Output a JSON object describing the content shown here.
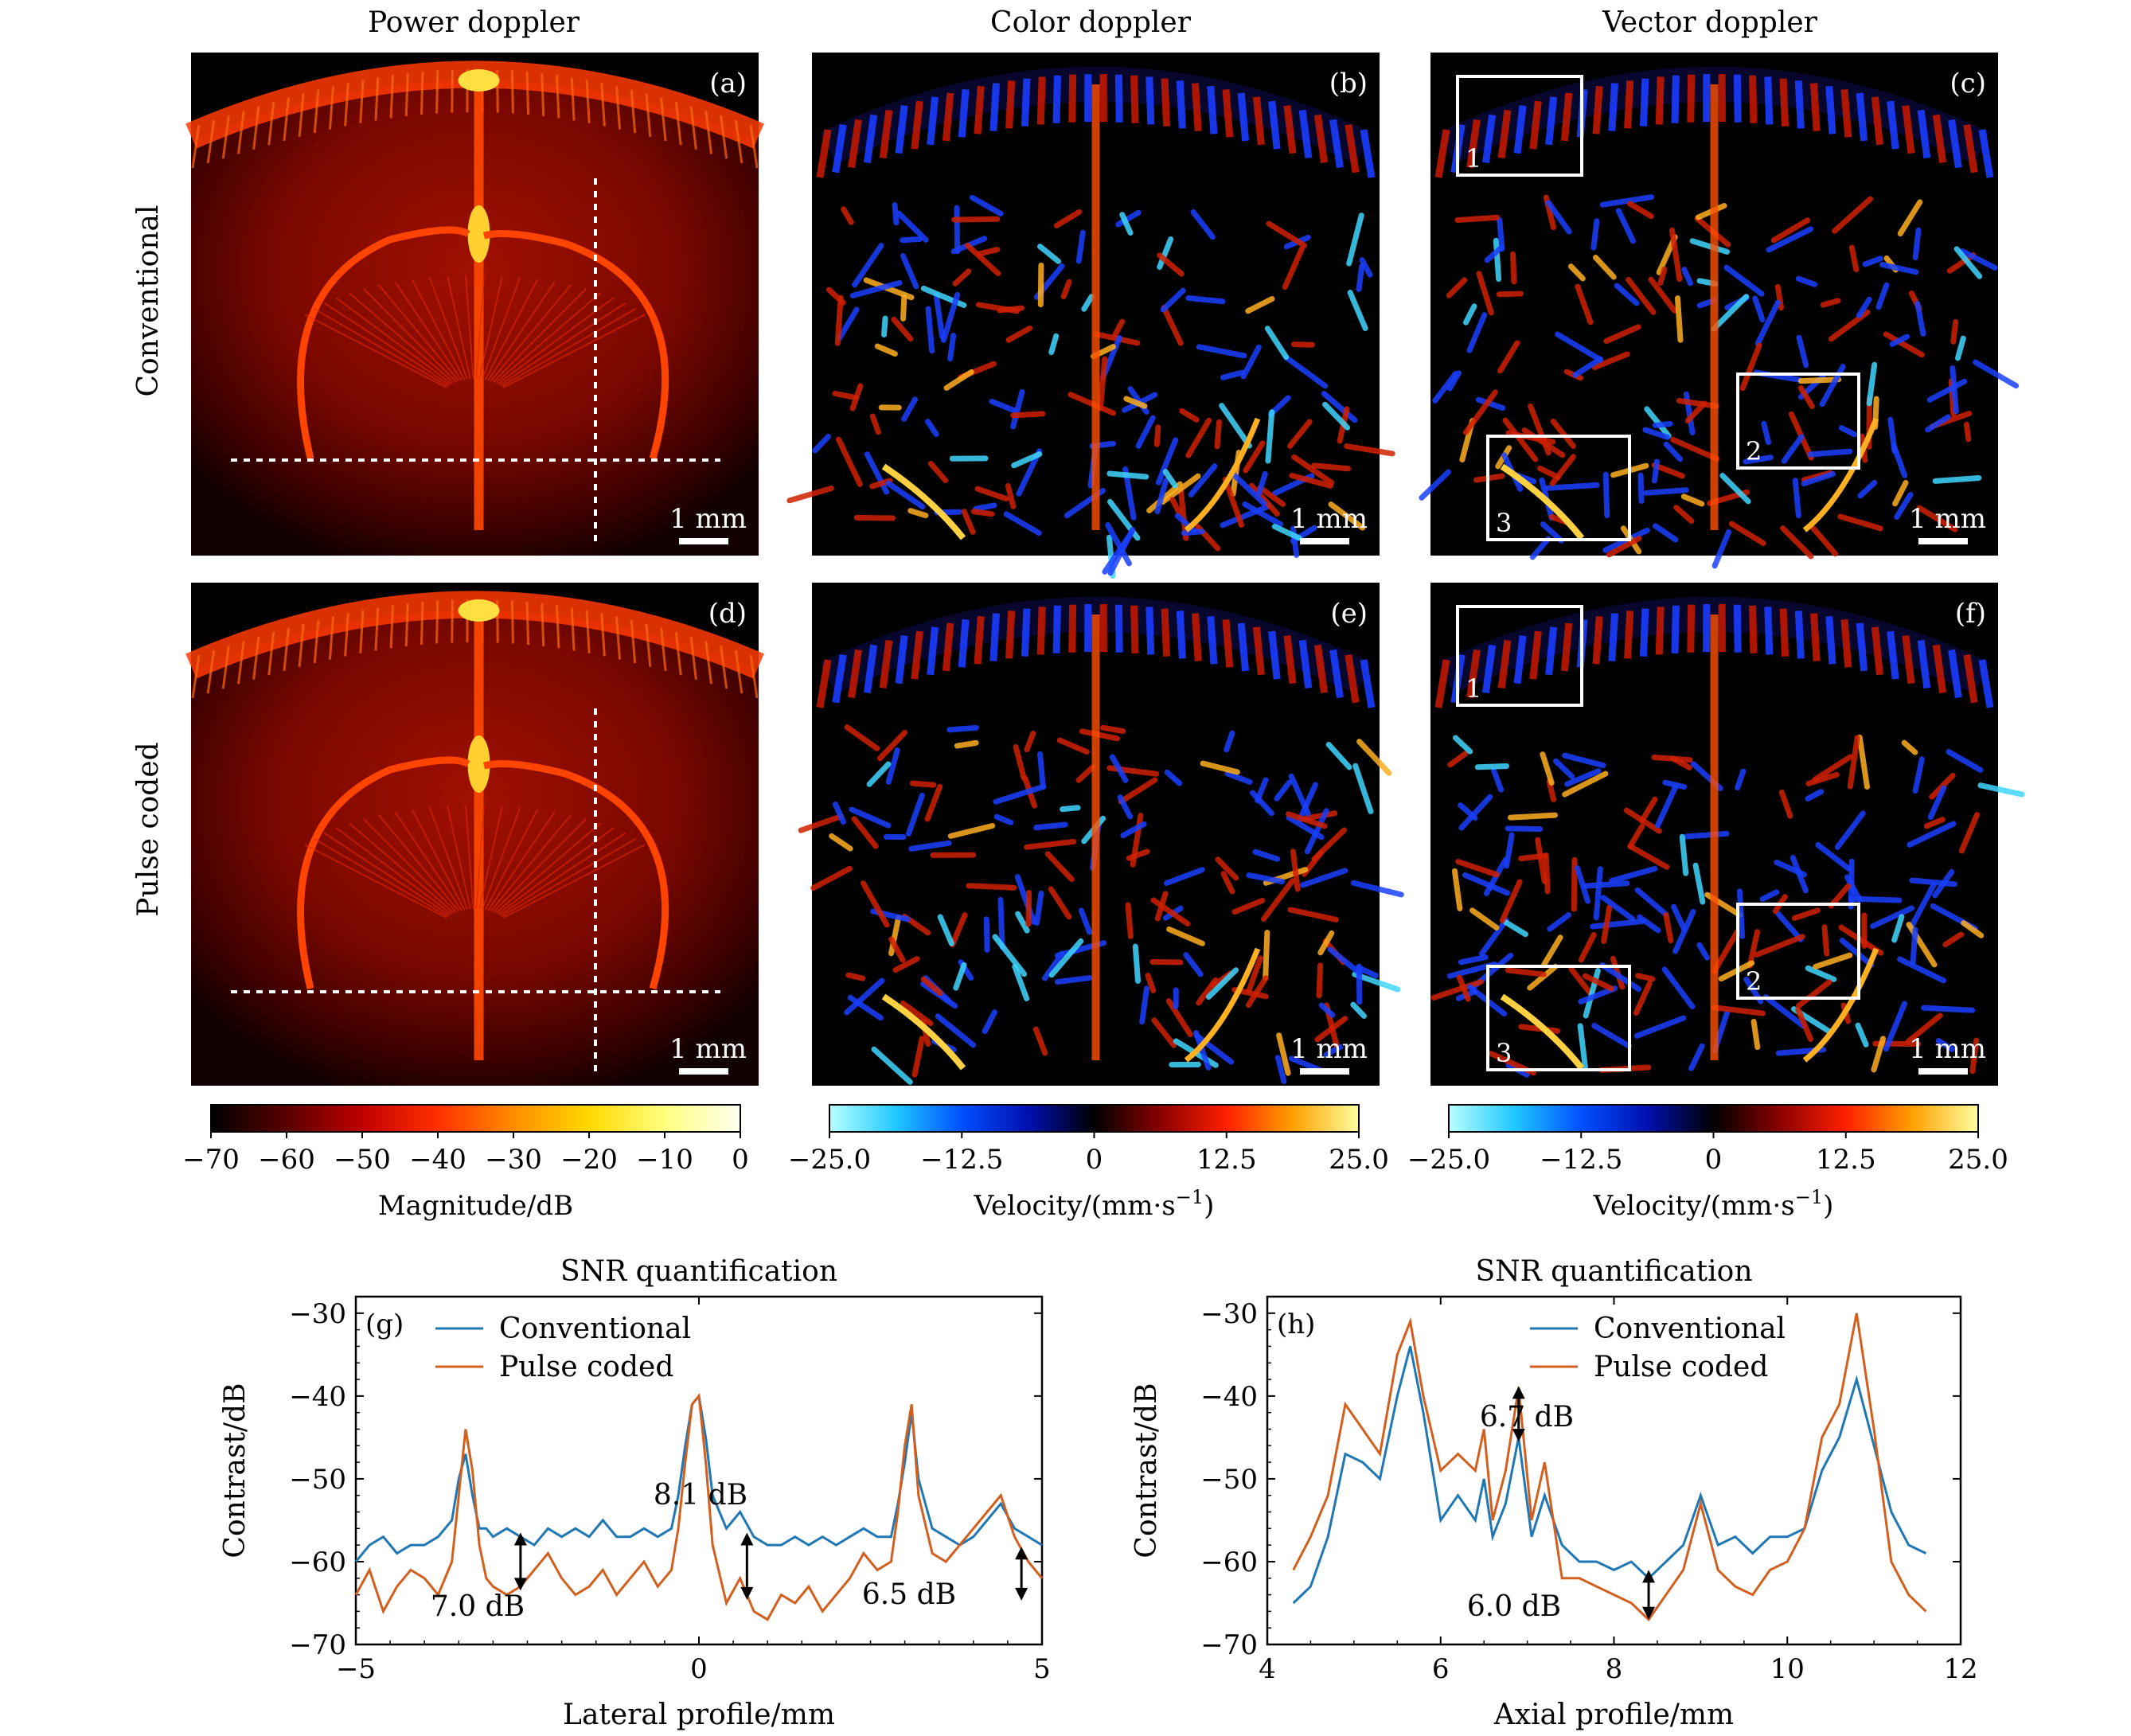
{
  "figure": {
    "column_titles": [
      "Power doppler",
      "Color doppler",
      "Vector doppler"
    ],
    "row_labels": [
      "Conventional",
      "Pulse coded"
    ],
    "panels": [
      {
        "tag": "(a)",
        "scale": "1 mm",
        "kind": "power"
      },
      {
        "tag": "(b)",
        "scale": "1 mm",
        "kind": "color"
      },
      {
        "tag": "(c)",
        "scale": "1 mm",
        "kind": "vector",
        "boxes": [
          "1",
          "2",
          "3"
        ]
      },
      {
        "tag": "(d)",
        "scale": "1 mm",
        "kind": "power"
      },
      {
        "tag": "(e)",
        "scale": "1 mm",
        "kind": "color"
      },
      {
        "tag": "(f)",
        "scale": "1 mm",
        "kind": "vector",
        "boxes": [
          "1",
          "2",
          "3"
        ]
      }
    ],
    "colorbars": [
      {
        "ticks": [
          "−70",
          "−60",
          "−50",
          "−40",
          "−30",
          "−20",
          "−10",
          "0"
        ],
        "label": "Magnitude/dB",
        "colormap": [
          "#000000",
          "#5a0000",
          "#c00000",
          "#ff3000",
          "#ff8c00",
          "#ffd800",
          "#ffff80",
          "#fffff0"
        ]
      },
      {
        "ticks": [
          "−25.0",
          "−12.5",
          "0",
          "12.5",
          "25.0"
        ],
        "label": "Velocity/(mm·s",
        "label_sup": "−1",
        "label_end": ")",
        "colormap": [
          "#b8ffff",
          "#20c8ff",
          "#0050ff",
          "#0010b0",
          "#000000",
          "#8a0000",
          "#ff2000",
          "#ffa000",
          "#ffffa0"
        ]
      },
      {
        "ticks": [
          "−25.0",
          "−12.5",
          "0",
          "12.5",
          "25.0"
        ],
        "label": "Velocity/(mm·s",
        "label_sup": "−1",
        "label_end": ")",
        "colormap": [
          "#b8ffff",
          "#20c8ff",
          "#0050ff",
          "#0010b0",
          "#000000",
          "#8a0000",
          "#ff2000",
          "#ffa000",
          "#ffffa0"
        ]
      }
    ]
  },
  "chart_data": [
    {
      "type": "line",
      "panel": "(g)",
      "title": "SNR quantification",
      "xlabel": "Lateral profile/mm",
      "ylabel": "Contrast/dB",
      "xlim": [
        -5,
        5
      ],
      "ylim": [
        -70,
        -28
      ],
      "xticks": [
        "−5",
        "0",
        "5"
      ],
      "yticks": [
        "−70",
        "−60",
        "−50",
        "−40",
        "−30"
      ],
      "legend": [
        "Conventional",
        "Pulse coded"
      ],
      "colors": {
        "Conventional": "#1f77b4",
        "Pulse coded": "#d35f1f"
      },
      "series": [
        {
          "name": "Conventional",
          "x": [
            -5,
            -4.8,
            -4.6,
            -4.4,
            -4.2,
            -4.0,
            -3.8,
            -3.6,
            -3.5,
            -3.4,
            -3.3,
            -3.2,
            -3.1,
            -3.0,
            -2.8,
            -2.6,
            -2.4,
            -2.2,
            -2.0,
            -1.8,
            -1.6,
            -1.4,
            -1.2,
            -1.0,
            -0.8,
            -0.6,
            -0.4,
            -0.3,
            -0.2,
            -0.1,
            0.0,
            0.1,
            0.2,
            0.4,
            0.6,
            0.8,
            1.0,
            1.2,
            1.4,
            1.6,
            1.8,
            2.0,
            2.2,
            2.4,
            2.6,
            2.8,
            2.9,
            3.0,
            3.1,
            3.2,
            3.4,
            3.6,
            3.8,
            4.0,
            4.2,
            4.4,
            4.6,
            4.8,
            5.0
          ],
          "y": [
            -60,
            -58,
            -57,
            -59,
            -58,
            -58,
            -57,
            -55,
            -50,
            -47,
            -52,
            -56,
            -56,
            -57,
            -56,
            -57,
            -58,
            -56,
            -57,
            -56,
            -57,
            -55,
            -57,
            -57,
            -56,
            -57,
            -56,
            -52,
            -46,
            -41,
            -40,
            -45,
            -52,
            -56,
            -54,
            -57,
            -58,
            -58,
            -57,
            -58,
            -57,
            -58,
            -57,
            -56,
            -57,
            -57,
            -53,
            -48,
            -42,
            -50,
            -56,
            -57,
            -58,
            -57,
            -55,
            -53,
            -56,
            -57,
            -58
          ]
        },
        {
          "name": "Pulse coded",
          "x": [
            -5,
            -4.8,
            -4.6,
            -4.4,
            -4.2,
            -4.0,
            -3.8,
            -3.6,
            -3.5,
            -3.4,
            -3.3,
            -3.2,
            -3.1,
            -3.0,
            -2.8,
            -2.6,
            -2.4,
            -2.2,
            -2.0,
            -1.8,
            -1.6,
            -1.4,
            -1.2,
            -1.0,
            -0.8,
            -0.6,
            -0.4,
            -0.3,
            -0.2,
            -0.1,
            0.0,
            0.1,
            0.2,
            0.4,
            0.6,
            0.8,
            1.0,
            1.2,
            1.4,
            1.6,
            1.8,
            2.0,
            2.2,
            2.4,
            2.6,
            2.8,
            2.9,
            3.0,
            3.1,
            3.2,
            3.4,
            3.6,
            3.8,
            4.0,
            4.2,
            4.4,
            4.6,
            4.8,
            5.0
          ],
          "y": [
            -64,
            -61,
            -66,
            -63,
            -61,
            -62,
            -64,
            -60,
            -52,
            -44,
            -49,
            -58,
            -62,
            -63,
            -64,
            -63,
            -61,
            -59,
            -62,
            -64,
            -63,
            -61,
            -64,
            -62,
            -60,
            -63,
            -61,
            -56,
            -48,
            -41,
            -40,
            -48,
            -58,
            -65,
            -62,
            -66,
            -67,
            -64,
            -65,
            -63,
            -66,
            -64,
            -62,
            -59,
            -61,
            -60,
            -54,
            -46,
            -41,
            -52,
            -59,
            -60,
            -58,
            -56,
            -54,
            -52,
            -57,
            -60,
            -62
          ]
        }
      ],
      "annotations": [
        "7.0 dB",
        "8.1 dB",
        "6.5 dB"
      ]
    },
    {
      "type": "line",
      "panel": "(h)",
      "title": "SNR quantification",
      "xlabel": "Axial profile/mm",
      "ylabel": "Contrast/dB",
      "xlim": [
        4,
        12
      ],
      "ylim": [
        -70,
        -28
      ],
      "xticks": [
        "4",
        "6",
        "8",
        "10",
        "12"
      ],
      "yticks": [
        "−70",
        "−60",
        "−50",
        "−40",
        "−30"
      ],
      "legend": [
        "Conventional",
        "Pulse coded"
      ],
      "colors": {
        "Conventional": "#1f77b4",
        "Pulse coded": "#d35f1f"
      },
      "series": [
        {
          "name": "Conventional",
          "x": [
            4.3,
            4.5,
            4.7,
            4.9,
            5.1,
            5.3,
            5.5,
            5.65,
            5.8,
            6.0,
            6.2,
            6.4,
            6.5,
            6.6,
            6.75,
            6.9,
            7.05,
            7.2,
            7.4,
            7.6,
            7.8,
            8.0,
            8.2,
            8.4,
            8.6,
            8.8,
            9.0,
            9.2,
            9.4,
            9.6,
            9.8,
            10.0,
            10.2,
            10.4,
            10.6,
            10.8,
            11.0,
            11.2,
            11.4,
            11.6
          ],
          "y": [
            -65,
            -63,
            -57,
            -47,
            -48,
            -50,
            -40,
            -34,
            -42,
            -55,
            -52,
            -55,
            -50,
            -57,
            -53,
            -45,
            -57,
            -52,
            -58,
            -60,
            -60,
            -61,
            -60,
            -62,
            -60,
            -58,
            -52,
            -58,
            -57,
            -59,
            -57,
            -57,
            -56,
            -49,
            -45,
            -38,
            -46,
            -54,
            -58,
            -59
          ]
        },
        {
          "name": "Pulse coded",
          "x": [
            4.3,
            4.5,
            4.7,
            4.9,
            5.1,
            5.3,
            5.5,
            5.65,
            5.8,
            6.0,
            6.2,
            6.4,
            6.5,
            6.6,
            6.75,
            6.9,
            7.05,
            7.2,
            7.4,
            7.6,
            7.8,
            8.0,
            8.2,
            8.4,
            8.6,
            8.8,
            9.0,
            9.2,
            9.4,
            9.6,
            9.8,
            10.0,
            10.2,
            10.4,
            10.6,
            10.8,
            11.0,
            11.2,
            11.4,
            11.6
          ],
          "y": [
            -61,
            -57,
            -52,
            -41,
            -44,
            -47,
            -35,
            -31,
            -40,
            -49,
            -47,
            -49,
            -44,
            -55,
            -49,
            -39,
            -55,
            -48,
            -62,
            -62,
            -63,
            -64,
            -65,
            -67,
            -64,
            -61,
            -53,
            -61,
            -63,
            -64,
            -61,
            -60,
            -56,
            -45,
            -41,
            -30,
            -44,
            -60,
            -64,
            -66
          ]
        }
      ],
      "annotations": [
        "6.7 dB",
        "6.0 dB"
      ]
    }
  ]
}
